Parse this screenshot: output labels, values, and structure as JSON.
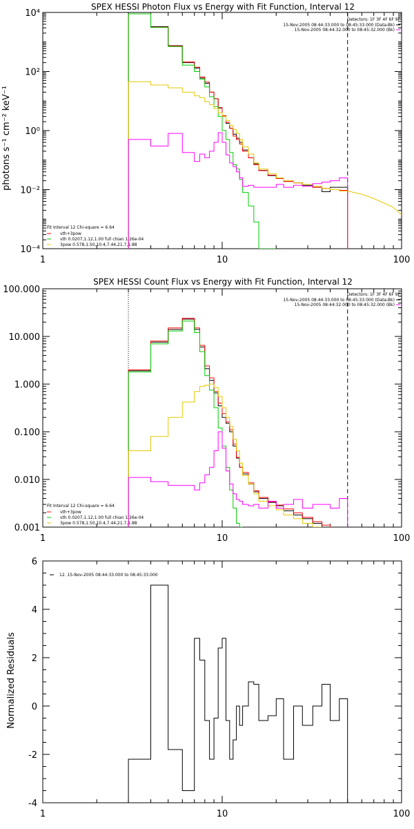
{
  "panels": [
    {
      "title": "SPEX HESSI Photon Flux vs Energy with Fit Function, Interval 12",
      "ylabel": "photons s⁻¹ cm⁻² keV⁻¹",
      "detectors": "Detectors: 1F 3F 4F 6F 9F",
      "info_lines": [
        "15-Nov-2005 08:44:33.000 to 08:45:33.000 (Data-Bk)",
        "15-Nov-2005 08:44:32.000 to 08:45:32.000 (Bk)"
      ],
      "legend": [
        "Fit Interval 12   Chi-square = 6.64",
        "vth+3pow",
        "vth 0.0207,1.12,1.00  full chian 1.26e-04",
        "3pow 0.578,1.50,10.4,7.44,21.7,1.88"
      ],
      "xticks": [
        "1",
        "10",
        "100"
      ],
      "yticks": [
        "10⁻⁴",
        "10⁻²",
        "10⁰",
        "10²",
        "10⁴"
      ]
    },
    {
      "title": "SPEX HESSI Count Flux vs Energy with Fit Function, Interval 12",
      "ylabel": "",
      "detectors": "Detectors: 1F 3F 4F 6F 9F",
      "info_lines": [
        "15-Nov-2005 08:44:33.000 to 08:45:33.000 (Data-Bk)",
        "15-Nov-2005 08:44:32.000 to 08:45:32.000 (Bk)"
      ],
      "legend": [
        "Fit Interval 12   Chi-square = 6.64",
        "vth+3pow",
        "vth 0.0207,1.12,1.00  full chian 1.26e-04",
        "3pow 0.578,1.50,10.4,7.44,21.7,1.88"
      ],
      "xticks": [
        "1",
        "10",
        "100"
      ],
      "yticks": [
        "0.001",
        "0.010",
        "0.100",
        "1.000",
        "10.000",
        "100.000"
      ]
    },
    {
      "title": "",
      "ylabel": "Normalized Residuals",
      "legend": [
        "12. 15-Nov-2005 08:44:33.000 to 08:45:33.000"
      ],
      "xticks": [
        "1",
        "10",
        "100"
      ],
      "yticks": [
        "-4",
        "-2",
        "0",
        "2",
        "4",
        "6"
      ]
    }
  ],
  "chart_data": [
    {
      "type": "line",
      "title": "SPEX HESSI Photon Flux vs Energy with Fit Function, Interval 12",
      "xlabel": "",
      "ylabel": "photons s⁻¹ cm⁻² keV⁻¹",
      "xscale": "log",
      "yscale": "log",
      "xlim": [
        1,
        100
      ],
      "ylim": [
        0.0001,
        10000
      ],
      "grid": false,
      "legend_position": "bottom-left",
      "bin_edges": [
        3,
        4,
        5,
        6,
        7,
        7.5,
        8,
        8.5,
        9,
        9.5,
        10,
        10.5,
        11,
        11.5,
        12,
        12.5,
        13,
        14,
        15,
        16,
        18,
        20,
        22,
        25,
        28,
        32,
        36,
        40,
        45,
        50
      ],
      "vertical_lines": [
        {
          "x": 3,
          "style": "dotted"
        },
        {
          "x": 50,
          "style": "dashed"
        }
      ],
      "series": [
        {
          "name": "",
          "color": "#000000",
          "values": [
            9000,
            3300,
            750,
            200,
            130,
            60,
            40,
            20,
            12,
            5.8,
            3.0,
            1.75,
            1.2,
            0.75,
            0.55,
            0.4,
            0.22,
            0.12,
            0.075,
            0.045,
            0.03,
            0.024,
            0.019,
            0.017,
            0.014,
            0.012,
            0.0085,
            0.012,
            0.012
          ]
        },
        {
          "name": "vth+3pow",
          "color": "#ff0000",
          "values": [
            9000,
            3150,
            730,
            210,
            140,
            65,
            44,
            20,
            12,
            6.0,
            3.2,
            1.9,
            1.2,
            0.65,
            0.5,
            0.35,
            0.2,
            0.12,
            0.07,
            0.044,
            0.031,
            0.024,
            0.019,
            0.017,
            0.015,
            0.012,
            0.011,
            0.01,
            0.0095
          ]
        },
        {
          "name": "vth 0.0207,1.12,1.00  full chian 1.26e-04",
          "color": "#00cc00",
          "values": [
            9000,
            3100,
            700,
            165,
            100,
            55,
            30,
            14,
            6.5,
            3.0,
            1.0,
            0.5,
            0.18,
            0.07,
            0.05,
            0.022,
            0.008,
            0.0028,
            0.0008,
            0.0001,
            5e-05
          ]
        },
        {
          "name": "3pow 0.578,1.50,10.4,7.44,21.7,1.88",
          "color": "#e6c800",
          "values": [
            45,
            35,
            28,
            20,
            15,
            13,
            9.5,
            7.5,
            5.5,
            4.0,
            3.0,
            2.2,
            1.5,
            1.1,
            0.8,
            0.5,
            0.28,
            0.16,
            0.08,
            0.05,
            0.035,
            0.025,
            0.02,
            0.017,
            0.015,
            0.013,
            0.011,
            0.01,
            0.009
          ]
        },
        {
          "name": "",
          "color": "#ff00ff",
          "values": [
            0.5,
            0.3,
            0.8,
            0.18,
            0.09,
            0.16,
            0.12,
            0.2,
            0.4,
            0.85,
            0.4,
            0.15,
            0.08,
            0.06,
            0.04,
            0.025,
            0.013,
            0.014,
            0.012,
            0.012,
            0.012,
            0.015,
            0.012,
            0.014,
            0.013,
            0.016,
            0.018,
            0.02,
            0.025
          ]
        },
        {
          "name": "",
          "color": "#e6c800",
          "x": [
            50,
            60,
            70,
            80,
            90,
            100
          ],
          "values": [
            0.009,
            0.007,
            0.005,
            0.0035,
            0.0025,
            0.0014
          ]
        }
      ]
    },
    {
      "type": "line",
      "title": "SPEX HESSI Count Flux vs Energy with Fit Function, Interval 12",
      "xlabel": "",
      "ylabel": "",
      "xscale": "log",
      "yscale": "log",
      "xlim": [
        1,
        100
      ],
      "ylim": [
        0.001,
        100
      ],
      "grid": false,
      "legend_position": "bottom-left",
      "bin_edges": [
        3,
        4,
        5,
        6,
        7,
        7.5,
        8,
        8.5,
        9,
        9.5,
        10,
        10.5,
        11,
        11.5,
        12,
        12.5,
        13,
        14,
        15,
        16,
        18,
        20,
        22,
        25,
        28,
        32,
        36,
        40,
        45,
        50
      ],
      "vertical_lines": [
        {
          "x": 3,
          "style": "dotted"
        },
        {
          "x": 50,
          "style": "dashed"
        }
      ],
      "series": [
        {
          "name": "",
          "color": "#000000",
          "values": [
            1.9,
            7.6,
            14,
            23,
            14,
            6,
            2.1,
            1.2,
            0.65,
            0.35,
            0.2,
            0.15,
            0.1,
            0.05,
            0.028,
            0.018,
            0.013,
            0.008,
            0.0055,
            0.004,
            0.0033,
            0.0028,
            0.0022,
            0.0018,
            0.0015,
            0.0012,
            0.001
          ]
        },
        {
          "name": "vth+3pow",
          "color": "#ff0000",
          "values": [
            2.0,
            8.0,
            15,
            24,
            15,
            6.5,
            2.4,
            1.35,
            0.7,
            0.4,
            0.24,
            0.16,
            0.11,
            0.055,
            0.029,
            0.018,
            0.014,
            0.0085,
            0.0058,
            0.0042,
            0.0034,
            0.0029,
            0.0024,
            0.002,
            0.0016,
            0.0013,
            0.0011
          ]
        },
        {
          "name": "vth 0.0207,1.12,1.00  full chian 1.26e-04",
          "color": "#00cc00",
          "values": [
            1.8,
            7.0,
            13,
            21,
            12,
            4.8,
            1.5,
            0.75,
            0.32,
            0.12,
            0.05,
            0.018,
            0.006,
            0.0025,
            0.0012,
            0.001
          ]
        },
        {
          "name": "3pow 0.578,1.50,10.4,7.44,21.7,1.88",
          "color": "#e6c800",
          "values": [
            0.04,
            0.08,
            0.2,
            0.42,
            0.7,
            0.9,
            0.95,
            1.0,
            0.85,
            0.55,
            0.32,
            0.2,
            0.13,
            0.07,
            0.04,
            0.022,
            0.012,
            0.008,
            0.005,
            0.0035,
            0.0028,
            0.0023,
            0.0018,
            0.0015,
            0.0012,
            0.001
          ]
        },
        {
          "name": "",
          "color": "#ff00ff",
          "values": [
            0.011,
            0.009,
            0.0075,
            0.0075,
            0.006,
            0.0085,
            0.0125,
            0.018,
            0.04,
            0.1,
            0.045,
            0.015,
            0.008,
            0.005,
            0.0038,
            0.0035,
            0.003,
            0.0028,
            0.003,
            0.0025,
            0.0035,
            0.0025,
            0.003,
            0.0038,
            0.0025,
            0.003,
            0.003,
            0.0025,
            0.004
          ]
        }
      ]
    },
    {
      "type": "line",
      "title": "",
      "xlabel": "",
      "ylabel": "Normalized Residuals",
      "xscale": "log",
      "yscale": "linear",
      "xlim": [
        1,
        100
      ],
      "ylim": [
        -4,
        6
      ],
      "grid": false,
      "legend_position": "top-left",
      "bin_edges": [
        3,
        4,
        5,
        6,
        7,
        7.5,
        8,
        8.5,
        9,
        9.5,
        10,
        10.5,
        11,
        11.5,
        12,
        12.5,
        13,
        14,
        15,
        16,
        18,
        20,
        22,
        25,
        28,
        32,
        36,
        40,
        45,
        50
      ],
      "series": [
        {
          "name": "12. 15-Nov-2005 08:44:33.000 to 08:45:33.000",
          "color": "#000000",
          "values": [
            -2.2,
            5.0,
            -1.8,
            -3.5,
            2.8,
            1.9,
            -0.6,
            -2.2,
            -0.5,
            2.4,
            2.8,
            -0.6,
            -2.2,
            -1.4,
            0.0,
            -0.8,
            0.0,
            1.0,
            0.9,
            -0.6,
            -0.4,
            0.3,
            -2.2,
            0.0,
            -0.8,
            0.0,
            0.9,
            -0.6,
            0.3
          ]
        }
      ]
    }
  ]
}
